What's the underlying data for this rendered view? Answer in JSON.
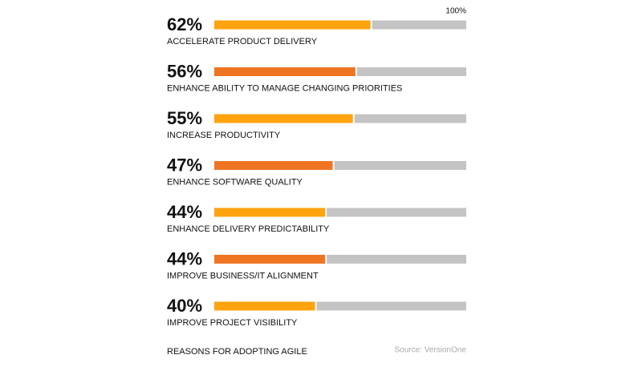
{
  "chart_data": {
    "type": "bar",
    "orientation": "horizontal",
    "title": "REASONS FOR ADOPTING AGILE",
    "source": "Source: VersionOne",
    "categories": [
      "ACCELERATE PRODUCT DELIVERY",
      "ENHANCE ABILITY TO MANAGE CHANGING PRIORITIES",
      "INCREASE PRODUCTIVITY",
      "ENHANCE SOFTWARE QUALITY",
      "ENHANCE DELIVERY PREDICTABILITY",
      "IMPROVE BUSINESS/IT ALIGNMENT",
      "IMPROVE PROJECT VISIBILITY"
    ],
    "values": [
      62,
      56,
      55,
      47,
      44,
      44,
      40
    ],
    "value_labels": [
      "62%",
      "56%",
      "55%",
      "47%",
      "44%",
      "44%",
      "40%"
    ],
    "colors": [
      "#ffa30f",
      "#f07522",
      "#ffa30f",
      "#f07522",
      "#ffa30f",
      "#f07522",
      "#ffa30f"
    ],
    "track_color": "#c4c4c4",
    "xlim": [
      0,
      100
    ],
    "xticks": [
      {
        "value": 100,
        "label": "100%"
      }
    ]
  }
}
